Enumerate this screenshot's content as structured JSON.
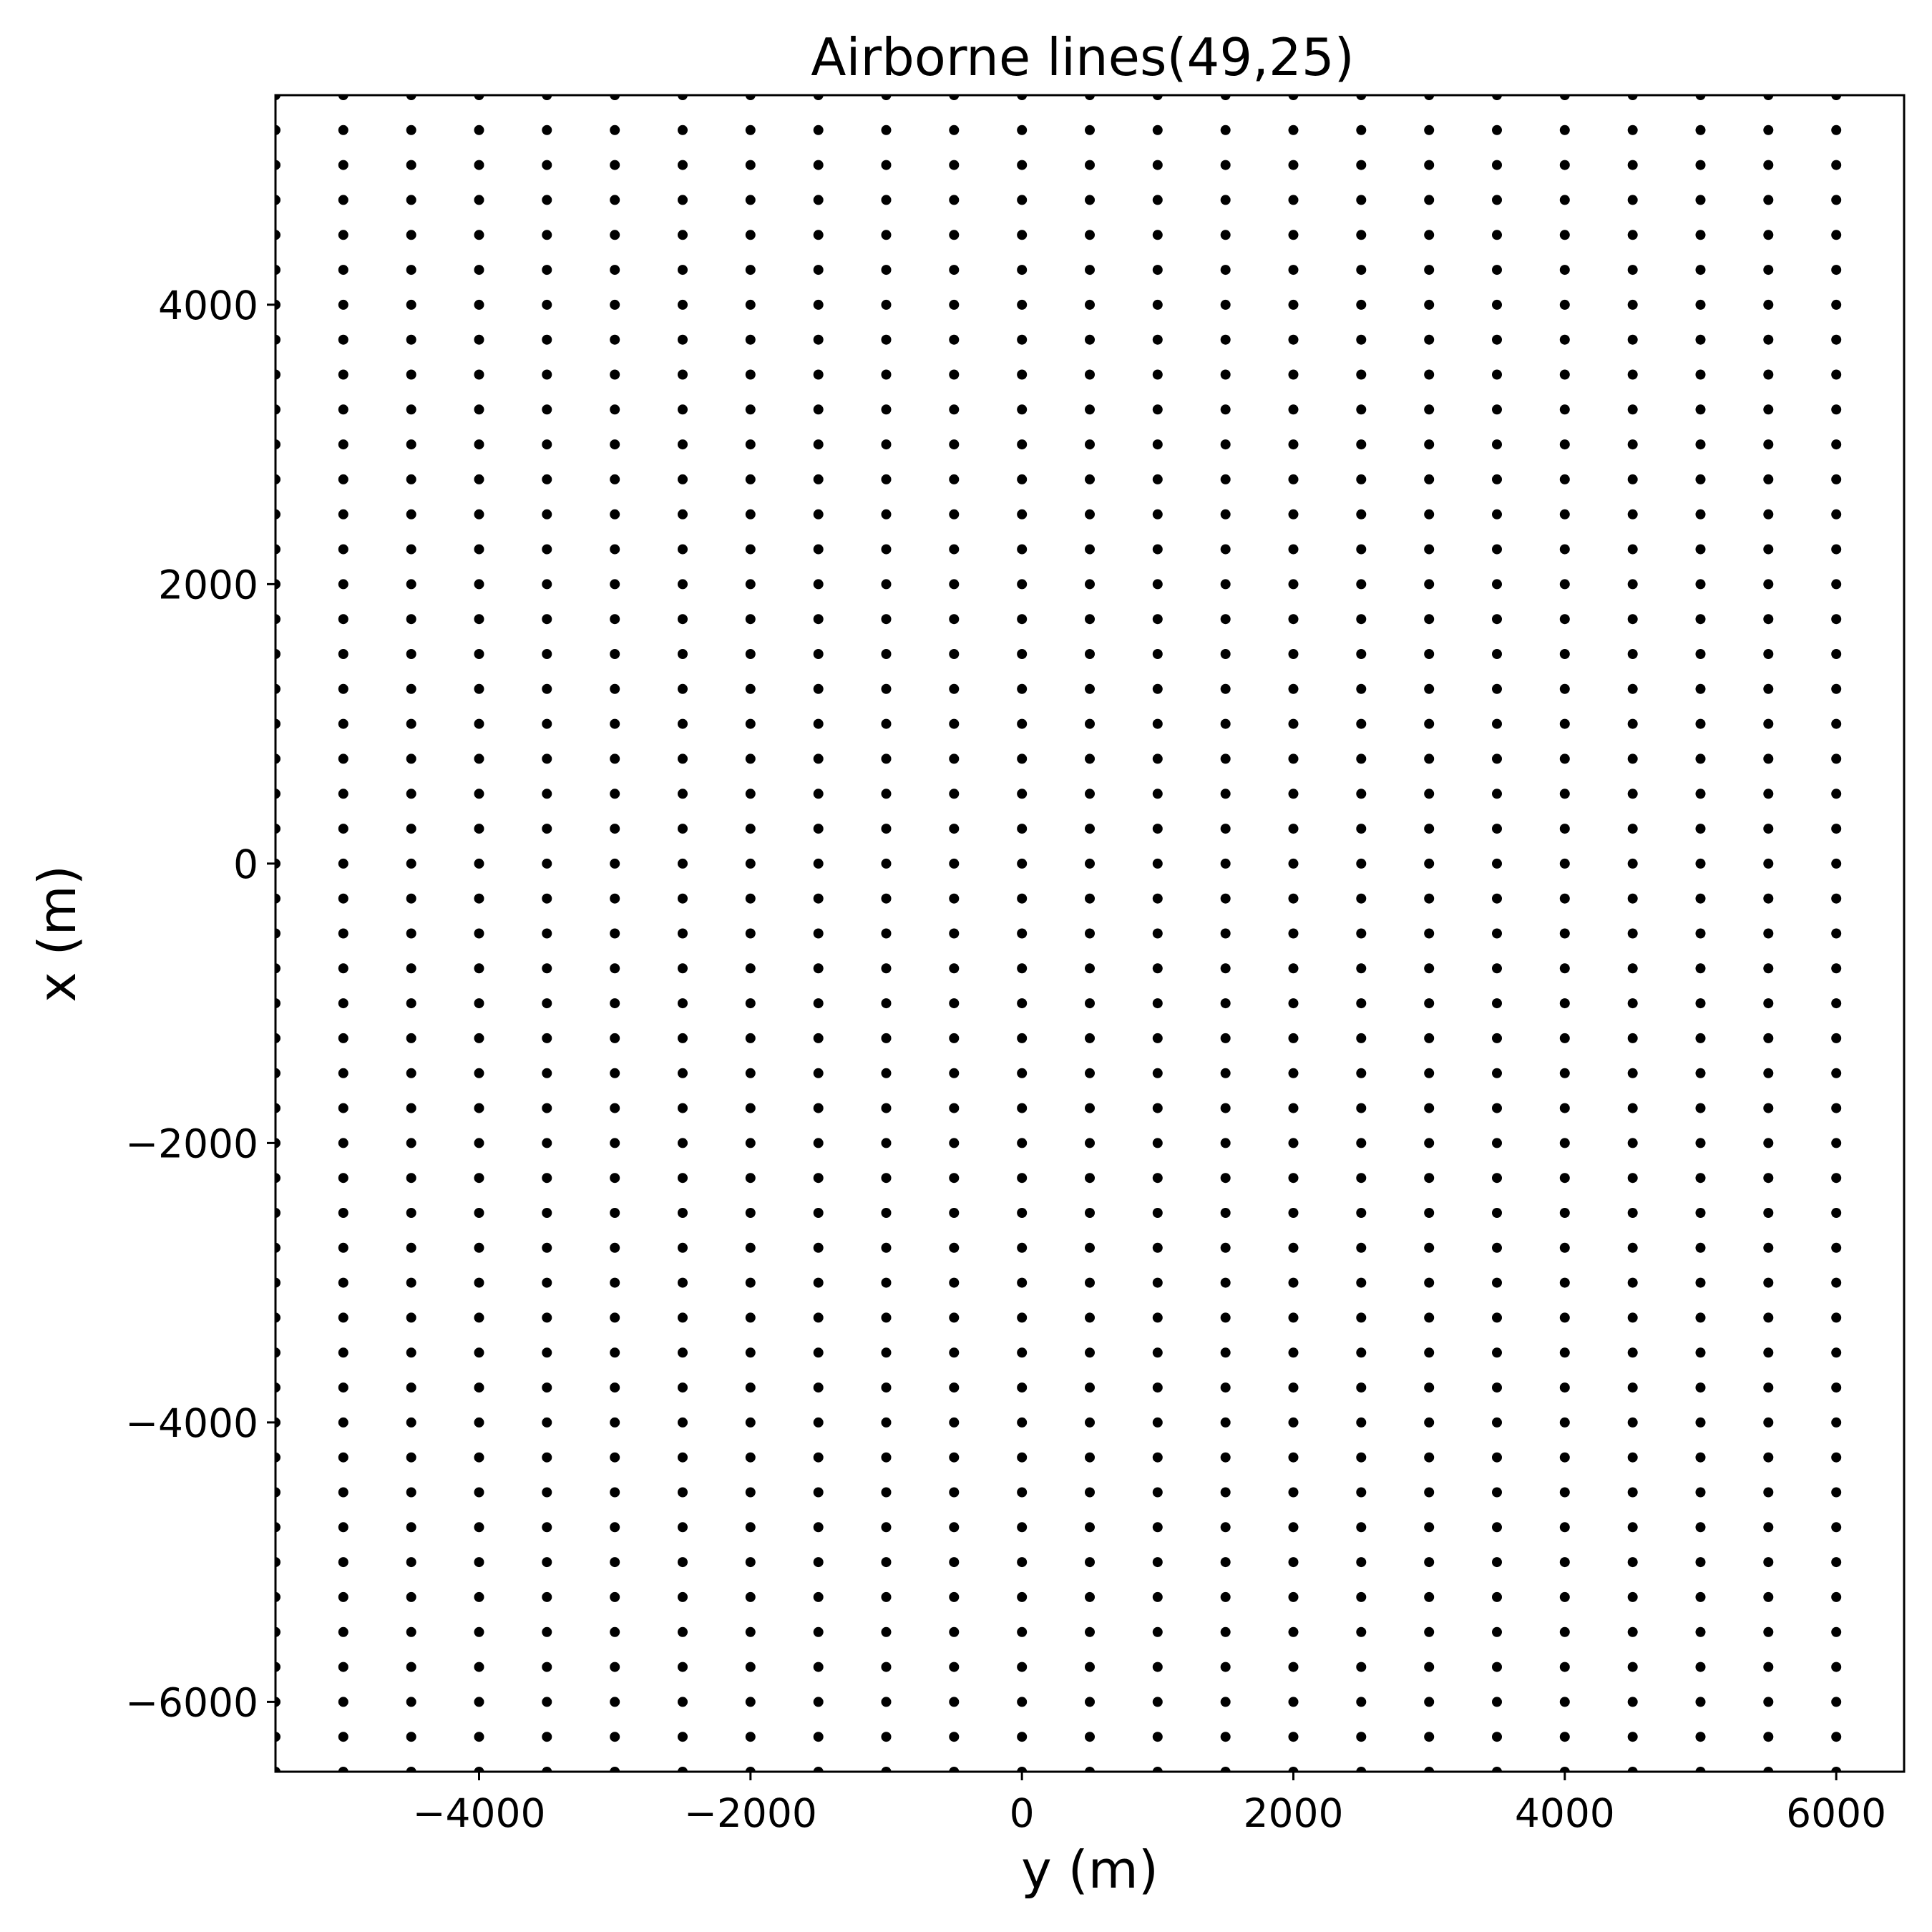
{
  "chart_data": {
    "type": "scatter",
    "title": "Airborne lines(49,25)",
    "xlabel": "y (m)",
    "ylabel": "x (m)",
    "xlim": [
      -5500,
      6500
    ],
    "ylim": [
      -6500,
      5500
    ],
    "xticks": [
      -4000,
      -2000,
      0,
      2000,
      4000,
      6000
    ],
    "yticks": [
      -6000,
      -4000,
      -2000,
      0,
      2000,
      4000
    ],
    "xtick_labels": [
      "−4000",
      "−2000",
      "0",
      "2000",
      "4000",
      "6000"
    ],
    "ytick_labels": [
      "−6000",
      "−4000",
      "−2000",
      "0",
      "2000",
      "4000"
    ],
    "grid": false,
    "marker_color": "#000000",
    "series": [
      {
        "x_start": -6000,
        "x_step": 500,
        "x_count": 25,
        "y_start": -6500,
        "y_step": 250,
        "y_count": 49
      }
    ]
  }
}
